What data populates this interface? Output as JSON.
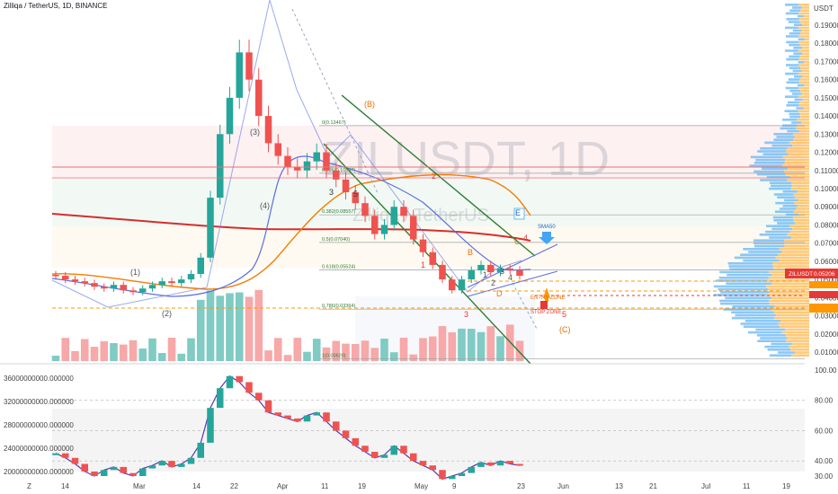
{
  "header": {
    "symbol_title": "Zilliqa / TetherUS, 1D, BINANCE",
    "watermark_main": "ZILUSDT, 1D",
    "watermark_sub": "Zilliqa / TetherUS"
  },
  "colors": {
    "up": "#26a69a",
    "down": "#ef5350",
    "sma200": "#d32f2f",
    "sma50": "#f57c00",
    "ma_blue": "#5b6ee1",
    "channel": "#2e7d32",
    "stop": "#ff9800",
    "volume_up": "#80cbc4",
    "volume_down": "#f7a8a8",
    "rsi": "#5e35b1"
  },
  "chart_data": [
    {
      "type": "candlestick",
      "pair": "ZILUSDT",
      "price_axis_unit": "USDT",
      "price_ticks": [
        0.01,
        0.02,
        0.03,
        0.04,
        0.05,
        0.06,
        0.07,
        0.08,
        0.09,
        0.1,
        0.11,
        0.12,
        0.13,
        0.14,
        0.15,
        0.16,
        0.17,
        0.18,
        0.19
      ],
      "price_tick_labels": [
        "0.01000",
        "0.02000",
        "0.03000",
        "0.04000",
        "0.05000",
        "0.06000",
        "0.07000",
        "0.08000",
        "0.09000",
        "0.10000",
        "0.11000",
        "0.12000",
        "0.13000",
        "0.14000",
        "0.15000",
        "0.16000",
        "0.17000",
        "0.18000",
        "0.19000"
      ],
      "x_tick_labels": [
        "Z",
        "14",
        "Mar",
        "14",
        "22",
        "Apr",
        "11",
        "19",
        "May",
        "9",
        "23",
        "Jun",
        "13",
        "21",
        "Jul",
        "11",
        "19"
      ],
      "last_price": {
        "label": "ZILUSDT",
        "value": "0.05206"
      },
      "closes_approx": [
        0.052,
        0.05,
        0.049,
        0.048,
        0.046,
        0.045,
        0.047,
        0.044,
        0.043,
        0.045,
        0.047,
        0.049,
        0.048,
        0.05,
        0.053,
        0.062,
        0.095,
        0.13,
        0.15,
        0.175,
        0.16,
        0.14,
        0.125,
        0.118,
        0.112,
        0.11,
        0.115,
        0.12,
        0.11,
        0.105,
        0.098,
        0.092,
        0.085,
        0.075,
        0.08,
        0.09,
        0.085,
        0.072,
        0.065,
        0.058,
        0.05,
        0.044,
        0.05,
        0.055,
        0.058,
        0.054,
        0.056,
        0.055,
        0.052
      ],
      "fib_levels": [
        {
          "label": "0(0.13467)",
          "value": 0.13467
        },
        {
          "label": "0.236(0.10847)",
          "value": 0.10847
        },
        {
          "label": "0.382(0.08557)",
          "value": 0.08557
        },
        {
          "label": "0.5(0.07040)",
          "value": 0.0704
        },
        {
          "label": "0.618(0.05524)",
          "value": 0.05524
        },
        {
          "label": "0.786(0.03364)",
          "value": 0.03364
        },
        {
          "label": "1(0.00620)",
          "value": 0.0062
        }
      ],
      "annotations": {
        "sma50_label": "SMA50",
        "entry_label": "ENTRY ZONE",
        "stop_label": "STOP ZONE",
        "waves": [
          "(1)",
          "(2)",
          "(3)",
          "(4)",
          "(B)",
          "(C)",
          "1",
          "2",
          "3",
          "4",
          "5",
          "3",
          "5",
          "B",
          "C",
          "D",
          "E",
          "1",
          "2",
          "3",
          "4",
          "5"
        ]
      }
    },
    {
      "type": "line",
      "name": "oscillator",
      "left_axis_labels": [
        "36000000000.000000",
        "32000000000.000000",
        "28000000000.000000",
        "24000000000.000000",
        "20000000000.000000"
      ],
      "right_axis_ticks": [
        30,
        40,
        60,
        80,
        100
      ],
      "right_axis_labels": [
        "30.00",
        "40.00",
        "60.00",
        "80.00",
        "100.00"
      ],
      "rsi_values": [
        45,
        42,
        38,
        33,
        30,
        34,
        36,
        32,
        30,
        35,
        37,
        40,
        36,
        38,
        42,
        52,
        75,
        88,
        96,
        92,
        85,
        80,
        72,
        70,
        68,
        66,
        70,
        72,
        66,
        60,
        55,
        50,
        46,
        42,
        44,
        50,
        45,
        40,
        37,
        34,
        28,
        30,
        32,
        36,
        39,
        37,
        40,
        38,
        37
      ]
    }
  ]
}
